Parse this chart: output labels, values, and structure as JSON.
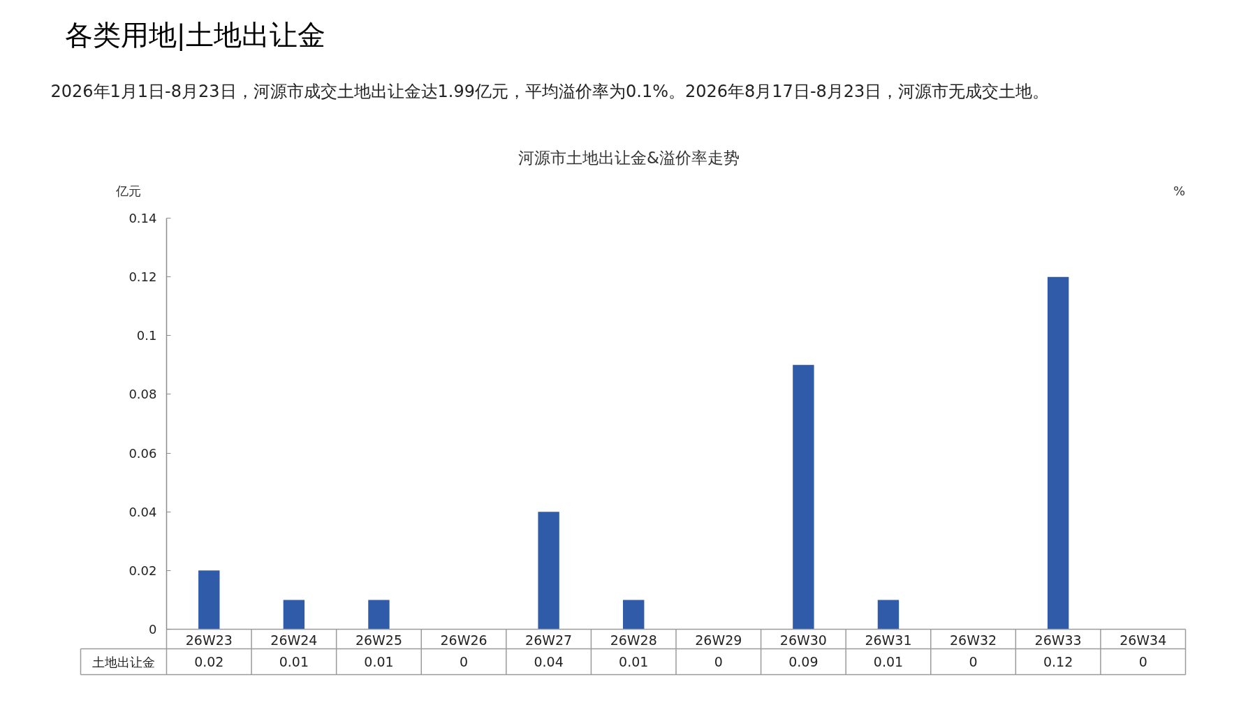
{
  "chart_data": {
    "type": "bar",
    "title": "河源市土地出让金&溢价率走势",
    "ylabel": "亿元",
    "y2label": "%",
    "annotations": [
      "各类用地|土地出让金",
      "2026年1月1日-8月23日，河源市成交土地出让金达1.99亿元，平均溢价率为0.1%。2026年8月17日-8月23日，河源市无成交土地。"
    ],
    "categories": [
      "26W23",
      "26W24",
      "26W25",
      "26W26",
      "26W27",
      "26W28",
      "26W29",
      "26W30",
      "26W31",
      "26W32",
      "26W33",
      "26W34"
    ],
    "series": [
      {
        "name": "土地出让金",
        "color": "#2f5ba8",
        "values": [
          0.02,
          0.01,
          0.01,
          0,
          0.04,
          0.01,
          0,
          0.09,
          0.01,
          0,
          0.12,
          0
        ]
      }
    ],
    "ylim": [
      0,
      0.14
    ],
    "yticks": [
      0,
      0.02,
      0.04,
      0.06,
      0.08,
      0.1,
      0.12,
      0.14
    ],
    "data_labels": true,
    "grid": false,
    "legend": false
  }
}
